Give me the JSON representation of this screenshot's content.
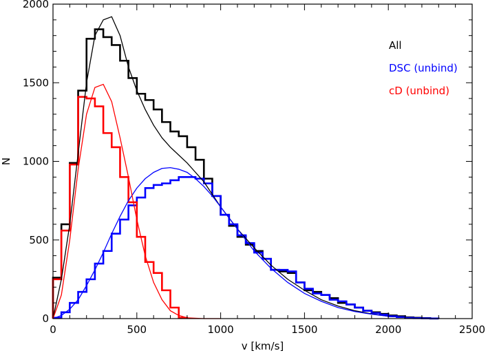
{
  "chart_data": {
    "type": "line",
    "title": "",
    "xlabel": "v [km/s]",
    "ylabel": "N",
    "xlim": [
      0,
      2500
    ],
    "ylim": [
      0,
      2000
    ],
    "xticks": [
      0,
      500,
      1000,
      1500,
      2000,
      2500
    ],
    "yticks": [
      0,
      500,
      1000,
      1500,
      2000
    ],
    "grid": false,
    "legend_position": "top-right",
    "bin_width": 50,
    "series": [
      {
        "name": "All",
        "color": "#000000",
        "style": "histogram",
        "bin_edges": [
          0,
          50,
          100,
          150,
          200,
          250,
          300,
          350,
          400,
          450,
          500,
          550,
          600,
          650,
          700,
          750,
          800,
          850,
          900,
          950,
          1000,
          1050,
          1100,
          1150,
          1200,
          1250,
          1300,
          1350,
          1400,
          1450,
          1500,
          1550,
          1600,
          1650,
          1700,
          1750,
          1800,
          1850,
          1900,
          1950,
          2000,
          2050,
          2100,
          2150,
          2200,
          2250,
          2300
        ],
        "counts": [
          260,
          600,
          990,
          1450,
          1780,
          1840,
          1790,
          1740,
          1640,
          1530,
          1430,
          1390,
          1330,
          1250,
          1190,
          1160,
          1090,
          1010,
          890,
          780,
          660,
          590,
          520,
          470,
          430,
          380,
          310,
          300,
          290,
          230,
          180,
          170,
          150,
          130,
          100,
          90,
          70,
          50,
          40,
          30,
          20,
          15,
          8,
          5,
          3,
          1
        ]
      },
      {
        "name": "DSC (unbind)",
        "color": "#0000ff",
        "style": "histogram",
        "bin_edges": [
          0,
          50,
          100,
          150,
          200,
          250,
          300,
          350,
          400,
          450,
          500,
          550,
          600,
          650,
          700,
          750,
          800,
          850,
          900,
          950,
          1000,
          1050,
          1100,
          1150,
          1200,
          1250,
          1300,
          1350,
          1400,
          1450,
          1500,
          1550,
          1600,
          1650,
          1700,
          1750,
          1800,
          1850,
          1900,
          1950,
          2000,
          2050,
          2100,
          2150,
          2200,
          2250,
          2300
        ],
        "counts": [
          5,
          40,
          100,
          170,
          250,
          350,
          430,
          540,
          630,
          720,
          770,
          830,
          850,
          860,
          880,
          900,
          900,
          890,
          860,
          780,
          660,
          600,
          530,
          480,
          420,
          380,
          310,
          310,
          300,
          230,
          190,
          160,
          150,
          120,
          110,
          90,
          70,
          50,
          35,
          25,
          15,
          10,
          5,
          3,
          2,
          1
        ]
      },
      {
        "name": "cD (unbind)",
        "color": "#ff0000",
        "style": "histogram",
        "bin_edges": [
          0,
          50,
          100,
          150,
          200,
          250,
          300,
          350,
          400,
          450,
          500,
          550,
          600,
          650,
          700,
          750,
          800
        ],
        "counts": [
          250,
          560,
          980,
          1410,
          1400,
          1350,
          1180,
          1090,
          900,
          740,
          520,
          360,
          290,
          180,
          70,
          5
        ]
      },
      {
        "name": "All",
        "color": "#000000",
        "style": "fit",
        "x": [
          0,
          50,
          100,
          150,
          200,
          250,
          300,
          350,
          400,
          450,
          500,
          550,
          600,
          650,
          700,
          750,
          800,
          850,
          900,
          950,
          1000,
          1100,
          1200,
          1300,
          1400,
          1500,
          1600,
          1700,
          1800,
          1900,
          2000,
          2100,
          2200,
          2300
        ],
        "y": [
          0,
          250,
          600,
          1050,
          1500,
          1800,
          1900,
          1920,
          1800,
          1600,
          1450,
          1330,
          1230,
          1150,
          1090,
          1040,
          990,
          930,
          870,
          790,
          710,
          570,
          450,
          340,
          250,
          180,
          120,
          80,
          50,
          30,
          15,
          8,
          3,
          1
        ]
      },
      {
        "name": "DSC (unbind)",
        "color": "#0000ff",
        "style": "fit",
        "x": [
          0,
          50,
          100,
          150,
          200,
          250,
          300,
          350,
          400,
          450,
          500,
          550,
          600,
          650,
          700,
          750,
          800,
          850,
          900,
          950,
          1000,
          1100,
          1200,
          1300,
          1400,
          1500,
          1600,
          1700,
          1800,
          1900,
          2000,
          2100,
          2200,
          2300
        ],
        "y": [
          0,
          20,
          60,
          120,
          210,
          310,
          420,
          540,
          650,
          750,
          830,
          890,
          930,
          955,
          960,
          950,
          930,
          890,
          840,
          780,
          710,
          570,
          430,
          320,
          230,
          160,
          110,
          70,
          45,
          28,
          15,
          7,
          3,
          1
        ]
      },
      {
        "name": "cD (unbind)",
        "color": "#ff0000",
        "style": "fit",
        "x": [
          0,
          50,
          100,
          150,
          200,
          250,
          300,
          350,
          400,
          450,
          500,
          550,
          600,
          650,
          700,
          750,
          800,
          900,
          1000
        ],
        "y": [
          0,
          150,
          500,
          950,
          1300,
          1470,
          1490,
          1380,
          1150,
          900,
          630,
          400,
          230,
          120,
          50,
          20,
          5,
          0,
          0
        ]
      }
    ],
    "legend": [
      {
        "label": "All",
        "color": "#000000"
      },
      {
        "label": "DSC (unbind)",
        "color": "#0000ff"
      },
      {
        "label": "cD (unbind)",
        "color": "#ff0000"
      }
    ]
  }
}
